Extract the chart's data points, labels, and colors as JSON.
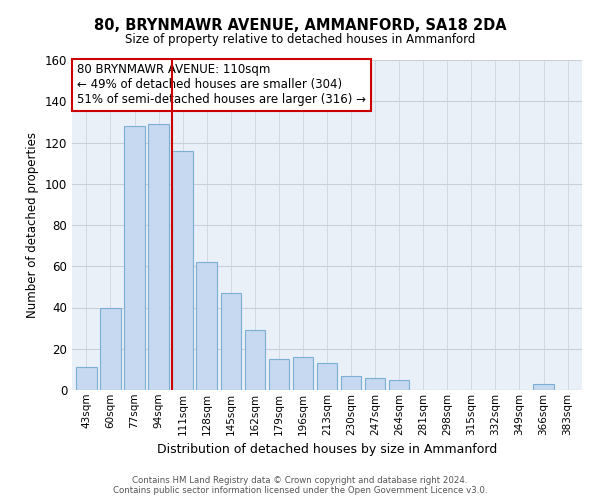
{
  "title": "80, BRYNMAWR AVENUE, AMMANFORD, SA18 2DA",
  "subtitle": "Size of property relative to detached houses in Ammanford",
  "xlabel": "Distribution of detached houses by size in Ammanford",
  "ylabel": "Number of detached properties",
  "bar_color": "#c6d9f0",
  "bar_edge_color": "#7bafd4",
  "background_color": "#ffffff",
  "plot_bg_color": "#eaf0f8",
  "grid_color": "#c8d0dc",
  "annotation_box_edge": "#cc0000",
  "reference_line_color": "#cc0000",
  "categories": [
    "43sqm",
    "60sqm",
    "77sqm",
    "94sqm",
    "111sqm",
    "128sqm",
    "145sqm",
    "162sqm",
    "179sqm",
    "196sqm",
    "213sqm",
    "230sqm",
    "247sqm",
    "264sqm",
    "281sqm",
    "298sqm",
    "315sqm",
    "332sqm",
    "349sqm",
    "366sqm",
    "383sqm"
  ],
  "values": [
    11,
    40,
    128,
    129,
    116,
    62,
    47,
    29,
    15,
    16,
    13,
    7,
    6,
    5,
    0,
    0,
    0,
    0,
    0,
    3,
    0
  ],
  "ylim": [
    0,
    160
  ],
  "yticks": [
    0,
    20,
    40,
    60,
    80,
    100,
    120,
    140,
    160
  ],
  "reference_bar_index": 4,
  "annotation_line1": "80 BRYNMAWR AVENUE: 110sqm",
  "annotation_line2": "← 49% of detached houses are smaller (304)",
  "annotation_line3": "51% of semi-detached houses are larger (316) →",
  "footer_line1": "Contains HM Land Registry data © Crown copyright and database right 2024.",
  "footer_line2": "Contains public sector information licensed under the Open Government Licence v3.0."
}
